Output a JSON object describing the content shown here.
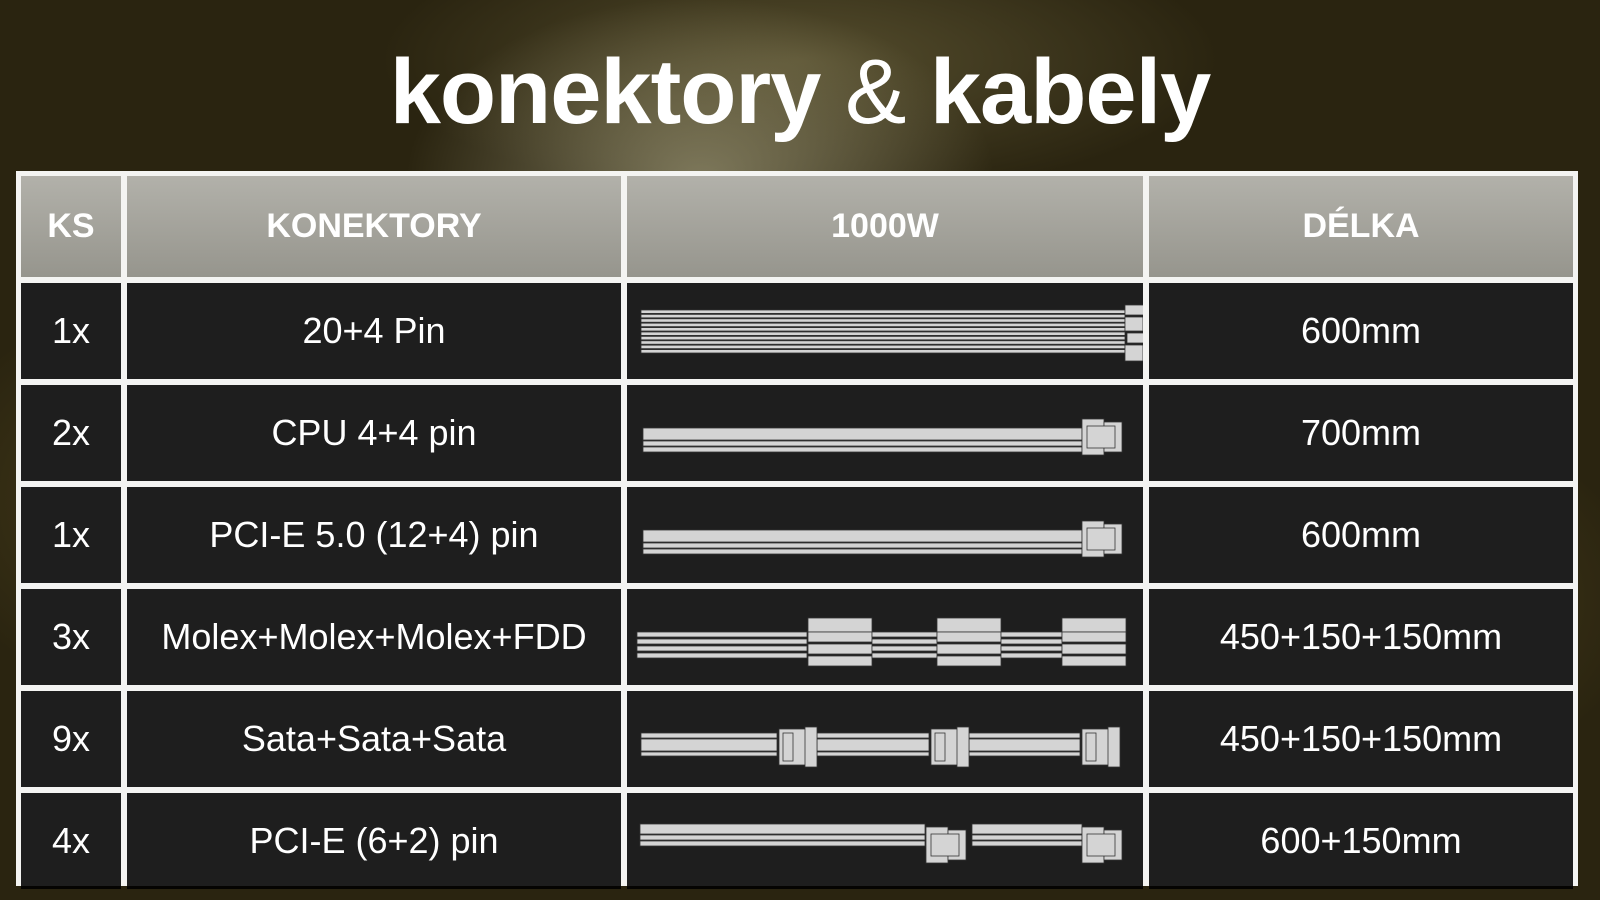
{
  "title": {
    "part1": "konektory",
    "amp": "&",
    "part2": "kabely"
  },
  "table": {
    "headers": [
      "KS",
      "KONEKTORY",
      "1000W",
      "DÉLKA"
    ],
    "rows": [
      {
        "qty": "1x",
        "connector": "20+4 Pin",
        "cable_icon": "atx-24pin-cable",
        "length": "600mm"
      },
      {
        "qty": "2x",
        "connector": "CPU 4+4 pin",
        "cable_icon": "eps-cpu-cable",
        "length": "700mm"
      },
      {
        "qty": "1x",
        "connector": "PCI-E 5.0 (12+4) pin",
        "cable_icon": "pcie5-cable",
        "length": "600mm"
      },
      {
        "qty": "3x",
        "connector": "Molex+Molex+Molex+FDD",
        "cable_icon": "molex-chain-cable",
        "length": "450+150+150mm"
      },
      {
        "qty": "9x",
        "connector": "Sata+Sata+Sata",
        "cable_icon": "sata-chain-cable",
        "length": "450+150+150mm"
      },
      {
        "qty": "4x",
        "connector": "PCI-E (6+2) pin",
        "cable_icon": "pcie-6-2-chain-cable",
        "length": "600+150mm"
      }
    ]
  },
  "colors": {
    "cable": "#d4d4d4",
    "header_bg": "#a5a49d",
    "grid_line": "#f4f4f2"
  }
}
